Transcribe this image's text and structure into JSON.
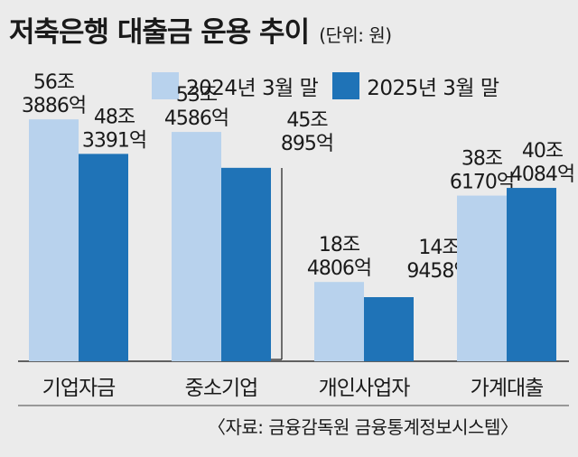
{
  "title": "저축은행 대출금 운용 추이",
  "unit": "(단위: 원)",
  "source": "〈자료: 금융감독원 금융통계정보시스템〉",
  "colors": {
    "series_2024": "#b8d2ed",
    "series_2025": "#1f73b7",
    "background": "#ebebeb"
  },
  "chart_data": {
    "type": "bar",
    "categories": [
      "기업자금",
      "중소기업",
      "개인사업자",
      "가계대출"
    ],
    "series": [
      {
        "name": "2024년 3월 말",
        "values": [
          563886,
          534586,
          184806,
          386170
        ],
        "labels": [
          [
            "56조",
            "3886억"
          ],
          [
            "53조",
            "4586억"
          ],
          [
            "18조",
            "4806억"
          ],
          [
            "38조",
            "6170억"
          ]
        ]
      },
      {
        "name": "2025년 3월 말",
        "values": [
          483391,
          450895,
          149458,
          404084
        ],
        "labels": [
          [
            "48조",
            "3391억"
          ],
          [
            "45조",
            "895억"
          ],
          [
            "14조",
            "9458억"
          ],
          [
            "40조",
            "4084억"
          ]
        ]
      }
    ],
    "value_unit": "억원",
    "ylim": [
      0,
      600000
    ],
    "grid": false,
    "legend": "top"
  }
}
